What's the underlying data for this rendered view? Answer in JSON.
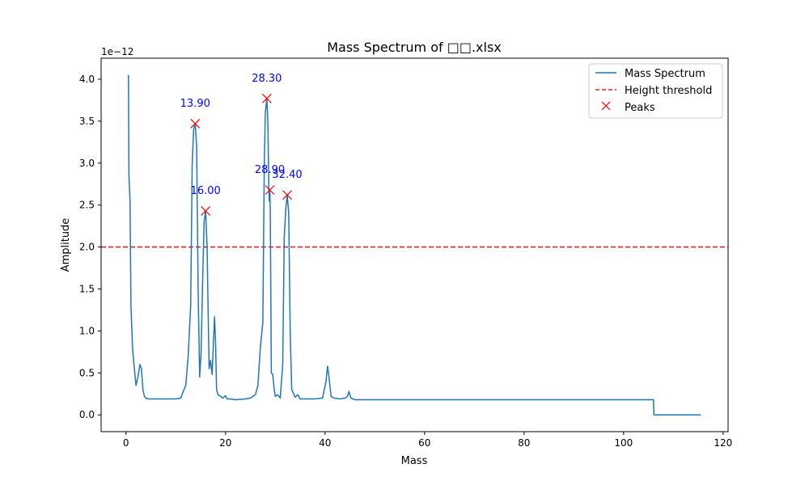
{
  "chart_data": {
    "type": "line",
    "title": "Mass Spectrum of □□.xlsx",
    "xlabel": "Mass",
    "ylabel": "Amplitude",
    "y_offset_text": "1e−12",
    "xlim": [
      -5,
      121
    ],
    "ylim": [
      -0.2,
      4.25
    ],
    "xticks": [
      0,
      20,
      40,
      60,
      80,
      100,
      120
    ],
    "xtick_labels": [
      "0",
      "20",
      "40",
      "60",
      "80",
      "100",
      "120"
    ],
    "yticks": [
      0.0,
      0.5,
      1.0,
      1.5,
      2.0,
      2.5,
      3.0,
      3.5,
      4.0
    ],
    "ytick_labels": [
      "0.0",
      "0.5",
      "1.0",
      "1.5",
      "2.0",
      "2.5",
      "3.0",
      "3.5",
      "4.0"
    ],
    "grid": false,
    "legend_position": "top-right",
    "colors": {
      "spectrum": "#1f77b4",
      "threshold": "#d62728",
      "peaks": "#ff0000",
      "peak_labels": "#0000ff"
    },
    "series": [
      {
        "name": "Mass Spectrum",
        "x": [
          0.5,
          0.6,
          0.8,
          1.0,
          1.3,
          1.6,
          2.0,
          2.4,
          2.8,
          3.1,
          3.4,
          3.7,
          4.0,
          4.5,
          5.0,
          6,
          7,
          8,
          9,
          10,
          11,
          11.5,
          12,
          12.5,
          13.0,
          13.3,
          13.6,
          13.9,
          14.2,
          14.5,
          14.8,
          15.1,
          15.4,
          15.7,
          16.0,
          16.3,
          16.5,
          16.7,
          17.0,
          17.3,
          17.6,
          17.8,
          18.0,
          18.2,
          18.5,
          19,
          19.5,
          20,
          20.3,
          21,
          22,
          24,
          25,
          26,
          26.5,
          27,
          27.5,
          27.8,
          28.0,
          28.3,
          28.5,
          28.7,
          28.8,
          28.9,
          29.0,
          29.2,
          29.5,
          29.8,
          30,
          30.5,
          31,
          31.5,
          31.8,
          32.1,
          32.4,
          32.7,
          33.0,
          33.3,
          34,
          34.5,
          35,
          36,
          38,
          39.5,
          40.2,
          40.5,
          40.8,
          41.2,
          41.8,
          43,
          44,
          44.5,
          44.8,
          45.2,
          46,
          50,
          55,
          60,
          65,
          70,
          75,
          80,
          85,
          90,
          95,
          100,
          105,
          106,
          106.1,
          110,
          115.5
        ],
        "values": [
          4.05,
          2.85,
          2.55,
          1.3,
          0.8,
          0.6,
          0.35,
          0.45,
          0.6,
          0.55,
          0.3,
          0.22,
          0.2,
          0.19,
          0.19,
          0.19,
          0.19,
          0.19,
          0.19,
          0.19,
          0.2,
          0.28,
          0.35,
          0.7,
          1.3,
          3.0,
          3.4,
          3.47,
          3.2,
          1.5,
          0.45,
          0.75,
          1.6,
          2.3,
          2.43,
          2.0,
          1.28,
          0.55,
          0.65,
          0.48,
          0.9,
          1.17,
          0.85,
          0.3,
          0.24,
          0.22,
          0.2,
          0.23,
          0.19,
          0.19,
          0.18,
          0.19,
          0.2,
          0.24,
          0.35,
          0.8,
          1.1,
          3.0,
          3.6,
          3.77,
          3.5,
          2.7,
          2.55,
          2.68,
          2.43,
          0.5,
          0.48,
          0.3,
          0.22,
          0.24,
          0.2,
          0.6,
          2.1,
          2.45,
          2.62,
          2.4,
          1.0,
          0.3,
          0.21,
          0.24,
          0.19,
          0.19,
          0.19,
          0.2,
          0.4,
          0.58,
          0.45,
          0.22,
          0.2,
          0.19,
          0.2,
          0.22,
          0.28,
          0.2,
          0.18,
          0.18,
          0.18,
          0.18,
          0.18,
          0.18,
          0.18,
          0.18,
          0.18,
          0.18,
          0.18,
          0.18,
          0.18,
          0.18,
          0.0,
          0.0,
          0.0
        ]
      },
      {
        "name": "Height threshold",
        "y": 2.0
      },
      {
        "name": "Peaks",
        "points": [
          {
            "x": 13.9,
            "y": 3.47,
            "label": "13.90"
          },
          {
            "x": 16.0,
            "y": 2.43,
            "label": "16.00"
          },
          {
            "x": 28.3,
            "y": 3.77,
            "label": "28.30"
          },
          {
            "x": 28.9,
            "y": 2.68,
            "label": "28.90"
          },
          {
            "x": 32.4,
            "y": 2.62,
            "label": "32.40"
          }
        ]
      }
    ]
  }
}
